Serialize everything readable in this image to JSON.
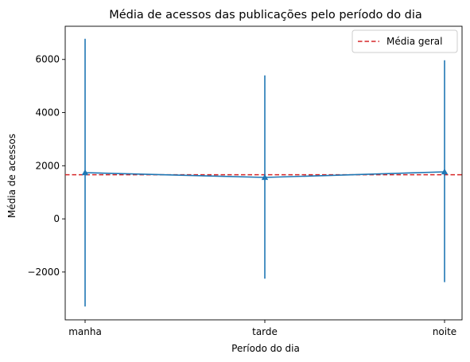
{
  "chart_data": {
    "type": "line",
    "title": "Média de acessos das publicações pelo período do dia",
    "xlabel": "Período do dia",
    "ylabel": "Média de acessos",
    "categories": [
      "manha",
      "tarde",
      "noite"
    ],
    "series": [
      {
        "values": [
          1740,
          1560,
          1770
        ],
        "error_low": [
          -3300,
          -2250,
          -2380
        ],
        "error_high": [
          6780,
          5400,
          5970
        ],
        "color": "#1f77b4",
        "marker": "triangle-up"
      }
    ],
    "reference_line": {
      "label": "Média geral",
      "value": 1660,
      "color": "#d62728",
      "style": "dashed"
    },
    "ylim": [
      -3800,
      7250
    ],
    "yticks": [
      -2000,
      0,
      2000,
      4000,
      6000
    ],
    "ytick_labels": [
      "−2000",
      "0",
      "2000",
      "4000",
      "6000"
    ],
    "grid": false,
    "legend_position": "top-right"
  }
}
